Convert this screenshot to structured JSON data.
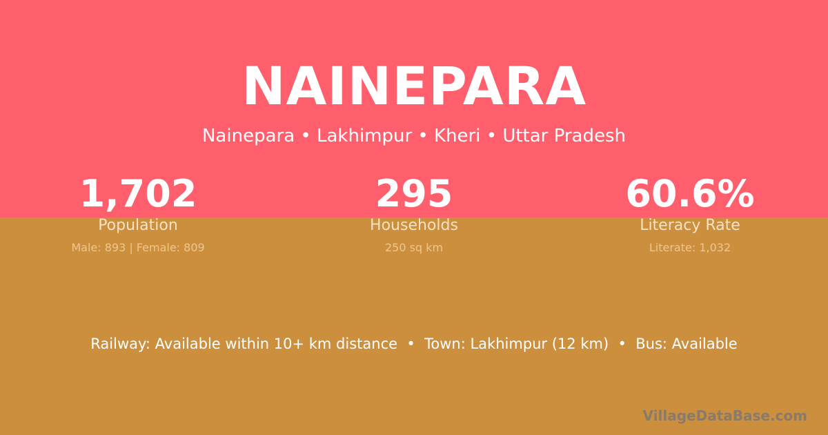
{
  "colors": {
    "top_background": "#FF5F6D",
    "bottom_background": "#CC8F3E"
  },
  "village": {
    "name": "NAINEPARA",
    "location": "Nainepara • Lakhimpur • Kheri • Uttar Pradesh"
  },
  "stats": [
    {
      "value": "1,702",
      "label": "Population",
      "detail": "Male: 893 | Female: 809"
    },
    {
      "value": "295",
      "label": "Households",
      "detail": "250 sq km"
    },
    {
      "value": "60.6%",
      "label": "Literacy Rate",
      "detail": "Literate: 1,032"
    }
  ],
  "transport": "Railway: Available within 10+ km distance  •  Town: Lakhimpur (12 km)  •  Bus: Available",
  "brand": "VillageDataBase.com"
}
